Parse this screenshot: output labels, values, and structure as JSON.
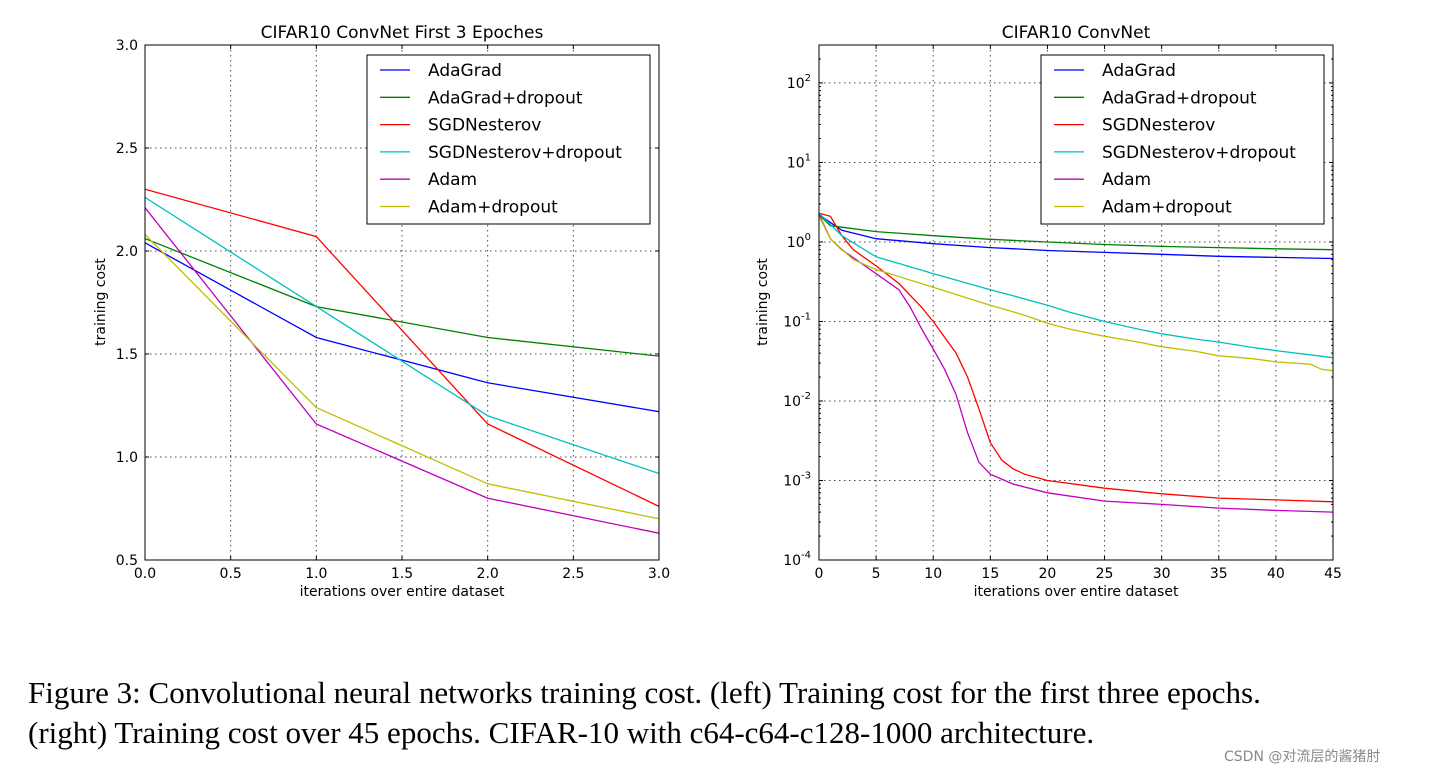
{
  "chart_data": [
    {
      "type": "line",
      "title": "CIFAR10 ConvNet First 3 Epoches",
      "xlabel": "iterations over entire dataset",
      "ylabel": "training cost",
      "xlim": [
        0,
        3
      ],
      "ylim": [
        0.5,
        3.0
      ],
      "yscale": "linear",
      "xticks": [
        "0.0",
        "0.5",
        "1.0",
        "1.5",
        "2.0",
        "2.5",
        "3.0"
      ],
      "yticks": [
        "0.5",
        "1.0",
        "1.5",
        "2.0",
        "2.5",
        "3.0"
      ],
      "grid": true,
      "legend_position": "top-right",
      "x": [
        0,
        1,
        2,
        3
      ],
      "series": [
        {
          "name": "AdaGrad",
          "color": "#0000ff",
          "values": [
            2.04,
            1.58,
            1.36,
            1.22
          ]
        },
        {
          "name": "AdaGrad+dropout",
          "color": "#008000",
          "values": [
            2.06,
            1.73,
            1.58,
            1.49
          ]
        },
        {
          "name": "SGDNesterov",
          "color": "#ff0000",
          "values": [
            2.3,
            2.07,
            1.16,
            0.76
          ]
        },
        {
          "name": "SGDNesterov+dropout",
          "color": "#00bfbf",
          "values": [
            2.26,
            1.73,
            1.2,
            0.92
          ]
        },
        {
          "name": "Adam",
          "color": "#bf00bf",
          "values": [
            2.21,
            1.16,
            0.8,
            0.63
          ]
        },
        {
          "name": "Adam+dropout",
          "color": "#bfbf00",
          "values": [
            2.08,
            1.24,
            0.87,
            0.7
          ]
        }
      ]
    },
    {
      "type": "line",
      "title": "CIFAR10 ConvNet",
      "xlabel": "iterations over entire dataset",
      "ylabel": "training cost",
      "xlim": [
        0,
        45
      ],
      "ylim": [
        0.0001,
        300
      ],
      "yscale": "log",
      "xticks": [
        "0",
        "5",
        "10",
        "15",
        "20",
        "25",
        "30",
        "35",
        "40",
        "45"
      ],
      "yticks": [
        {
          "base": "10",
          "exp": "-4"
        },
        {
          "base": "10",
          "exp": "-3"
        },
        {
          "base": "10",
          "exp": "-2"
        },
        {
          "base": "10",
          "exp": "-1"
        },
        {
          "base": "10",
          "exp": "0"
        },
        {
          "base": "10",
          "exp": "1"
        },
        {
          "base": "10",
          "exp": "2"
        }
      ],
      "grid": true,
      "legend_position": "top-right",
      "series": [
        {
          "name": "AdaGrad",
          "color": "#0000ff",
          "points": [
            [
              0,
              2.2
            ],
            [
              2,
              1.4
            ],
            [
              5,
              1.1
            ],
            [
              10,
              0.95
            ],
            [
              15,
              0.85
            ],
            [
              20,
              0.78
            ],
            [
              25,
              0.74
            ],
            [
              30,
              0.7
            ],
            [
              35,
              0.66
            ],
            [
              40,
              0.64
            ],
            [
              45,
              0.62
            ]
          ]
        },
        {
          "name": "AdaGrad+dropout",
          "color": "#008000",
          "points": [
            [
              0,
              2.2
            ],
            [
              1,
              1.6
            ],
            [
              5,
              1.35
            ],
            [
              10,
              1.2
            ],
            [
              15,
              1.08
            ],
            [
              20,
              1.0
            ],
            [
              25,
              0.93
            ],
            [
              30,
              0.88
            ],
            [
              35,
              0.85
            ],
            [
              40,
              0.82
            ],
            [
              45,
              0.8
            ]
          ]
        },
        {
          "name": "SGDNesterov",
          "color": "#ff0000",
          "points": [
            [
              0,
              2.3
            ],
            [
              1,
              2.1
            ],
            [
              2,
              1.2
            ],
            [
              3,
              0.8
            ],
            [
              5,
              0.5
            ],
            [
              7,
              0.3
            ],
            [
              9,
              0.15
            ],
            [
              10,
              0.1
            ],
            [
              12,
              0.04
            ],
            [
              13,
              0.02
            ],
            [
              14,
              0.008
            ],
            [
              15,
              0.003
            ],
            [
              16,
              0.0018
            ],
            [
              17,
              0.0014
            ],
            [
              18,
              0.0012
            ],
            [
              20,
              0.001
            ],
            [
              25,
              0.0008
            ],
            [
              30,
              0.00068
            ],
            [
              35,
              0.0006
            ],
            [
              40,
              0.00057
            ],
            [
              45,
              0.00054
            ]
          ]
        },
        {
          "name": "SGDNesterov+dropout",
          "color": "#00bfbf",
          "points": [
            [
              0,
              2.3
            ],
            [
              2,
              1.2
            ],
            [
              5,
              0.65
            ],
            [
              10,
              0.4
            ],
            [
              15,
              0.25
            ],
            [
              17,
              0.21
            ],
            [
              20,
              0.16
            ],
            [
              22,
              0.13
            ],
            [
              25,
              0.1
            ],
            [
              28,
              0.08
            ],
            [
              30,
              0.07
            ],
            [
              33,
              0.06
            ],
            [
              35,
              0.055
            ],
            [
              38,
              0.047
            ],
            [
              40,
              0.043
            ],
            [
              45,
              0.035
            ]
          ]
        },
        {
          "name": "Adam",
          "color": "#bf00bf",
          "points": [
            [
              0,
              2.2
            ],
            [
              1,
              1.1
            ],
            [
              2,
              0.8
            ],
            [
              5,
              0.4
            ],
            [
              7,
              0.25
            ],
            [
              8,
              0.15
            ],
            [
              9,
              0.08
            ],
            [
              10,
              0.045
            ],
            [
              11,
              0.025
            ],
            [
              12,
              0.012
            ],
            [
              13,
              0.004
            ],
            [
              14,
              0.0017
            ],
            [
              15,
              0.0012
            ],
            [
              17,
              0.0009
            ],
            [
              20,
              0.0007
            ],
            [
              25,
              0.00055
            ],
            [
              30,
              0.0005
            ],
            [
              35,
              0.00045
            ],
            [
              40,
              0.00042
            ],
            [
              45,
              0.0004
            ]
          ]
        },
        {
          "name": "Adam+dropout",
          "color": "#bfbf00",
          "points": [
            [
              0,
              2.1
            ],
            [
              1,
              1.1
            ],
            [
              3,
              0.6
            ],
            [
              5,
              0.45
            ],
            [
              10,
              0.27
            ],
            [
              15,
              0.16
            ],
            [
              18,
              0.12
            ],
            [
              20,
              0.095
            ],
            [
              22,
              0.08
            ],
            [
              25,
              0.065
            ],
            [
              28,
              0.055
            ],
            [
              30,
              0.048
            ],
            [
              33,
              0.042
            ],
            [
              35,
              0.037
            ],
            [
              38,
              0.034
            ],
            [
              40,
              0.031
            ],
            [
              43,
              0.029
            ],
            [
              44,
              0.025
            ],
            [
              45,
              0.024
            ]
          ]
        }
      ]
    }
  ],
  "caption": {
    "line1": "Figure 3: Convolutional neural networks training cost. (left) Training cost for the first three epochs.",
    "line2": "(right) Training cost over 45 epochs. CIFAR-10 with c64-c64-c128-1000 architecture."
  },
  "watermark": "CSDN @对流层的酱猪肘"
}
